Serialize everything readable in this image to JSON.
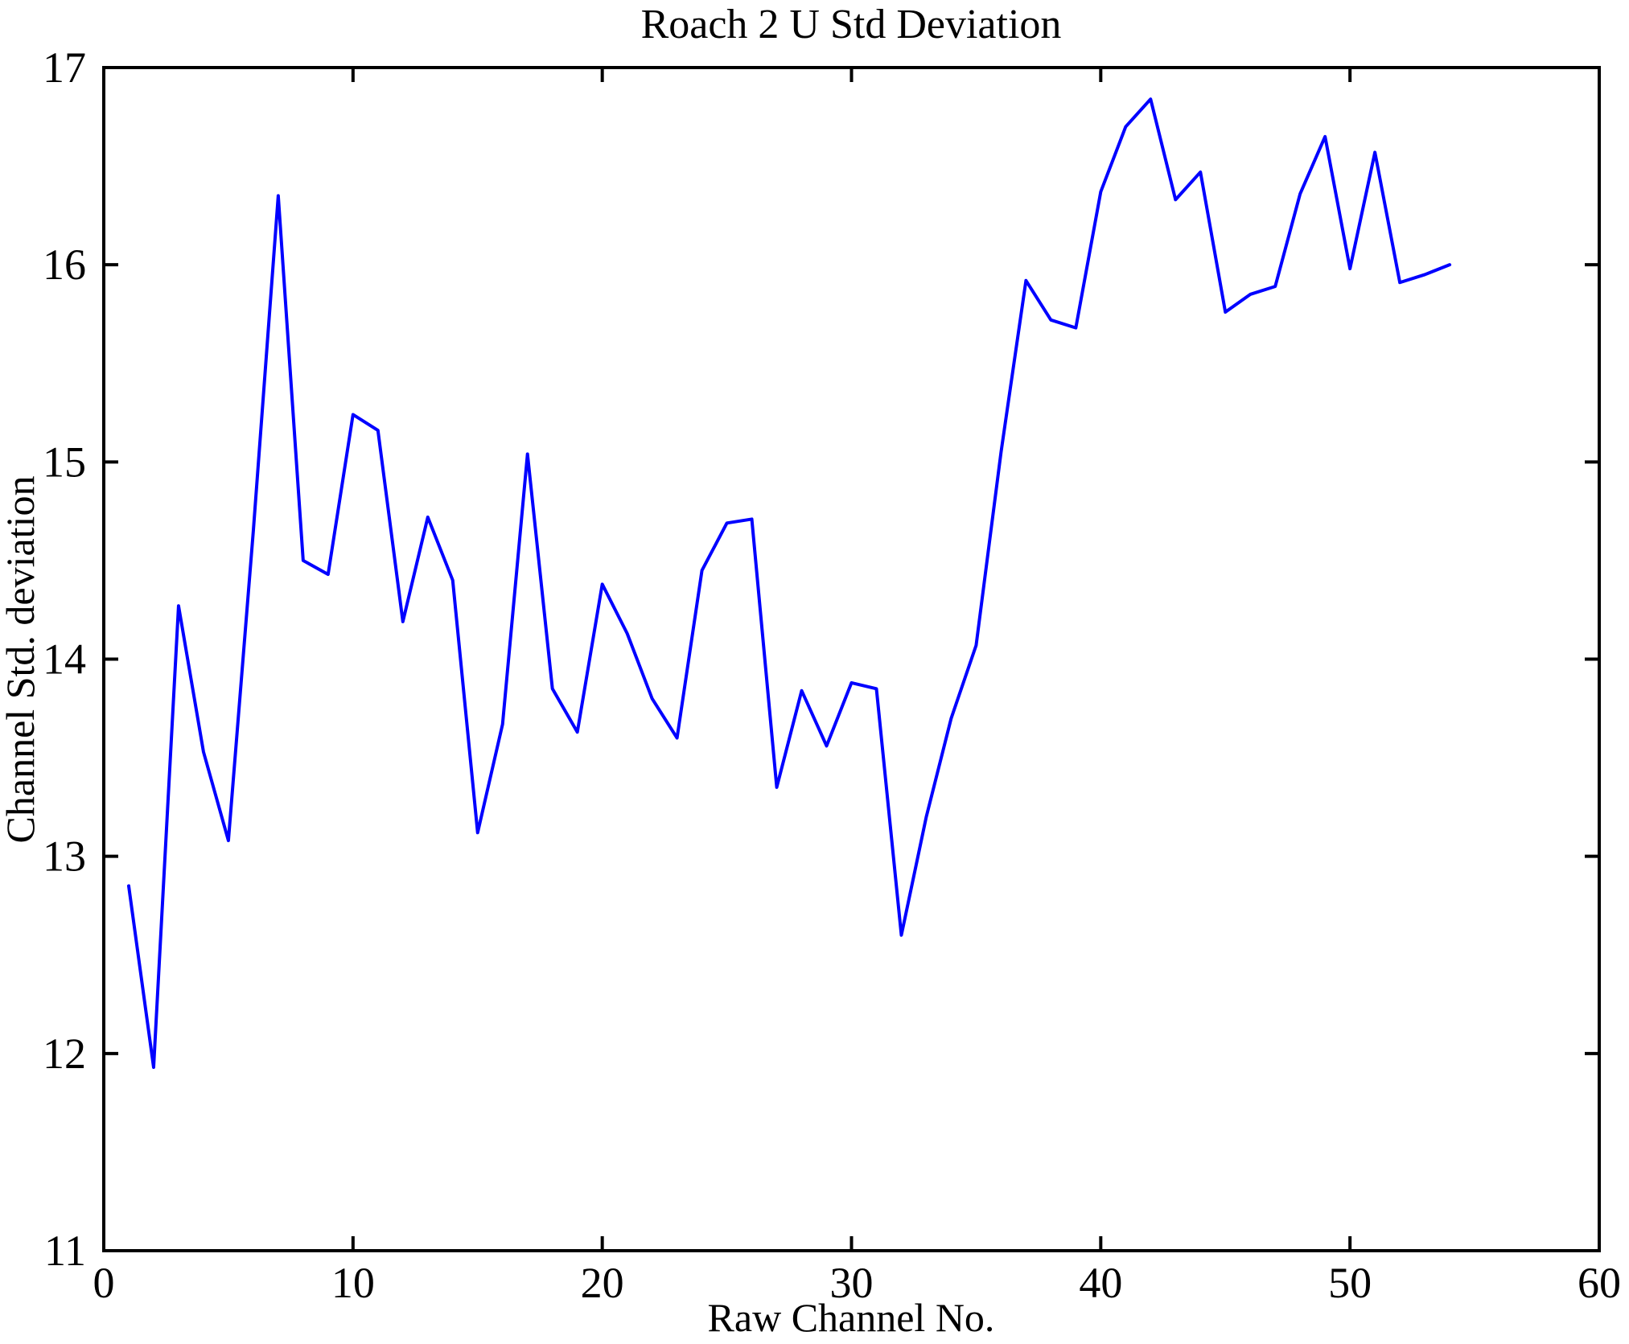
{
  "figure": {
    "background": "#ffffff",
    "text_color": "#000000",
    "axis_color": "#000000"
  },
  "chart_data": {
    "type": "line",
    "title": "Roach 2 U Std Deviation",
    "xlabel": "Raw Channel No.",
    "ylabel": "Channel Std. deviation",
    "xlim": [
      0,
      60
    ],
    "ylim": [
      11,
      17
    ],
    "xticks": [
      0,
      10,
      20,
      30,
      40,
      50,
      60
    ],
    "yticks": [
      11,
      12,
      13,
      14,
      15,
      16,
      17
    ],
    "grid": false,
    "legend": "none",
    "line_color": "#0000ff",
    "series_name": "Channel Std. deviation",
    "x": [
      1,
      2,
      3,
      4,
      5,
      6,
      7,
      8,
      9,
      10,
      11,
      12,
      13,
      14,
      15,
      16,
      17,
      18,
      19,
      20,
      21,
      22,
      23,
      24,
      25,
      26,
      27,
      28,
      29,
      30,
      31,
      32,
      33,
      34,
      35,
      36,
      37,
      38,
      39,
      40,
      41,
      42,
      43,
      44,
      45,
      46,
      47,
      48,
      49,
      50,
      51,
      52,
      53,
      54
    ],
    "values": [
      12.85,
      11.93,
      14.27,
      13.53,
      13.08,
      14.65,
      16.35,
      14.5,
      14.43,
      15.24,
      15.16,
      14.19,
      14.72,
      14.4,
      13.12,
      13.67,
      15.04,
      13.85,
      13.63,
      14.38,
      14.13,
      13.8,
      13.6,
      14.45,
      14.69,
      14.71,
      13.35,
      13.84,
      13.56,
      13.88,
      13.85,
      12.6,
      13.2,
      13.7,
      14.07,
      15.05,
      15.92,
      15.72,
      15.68,
      16.37,
      16.7,
      16.84,
      16.33,
      16.47,
      15.76,
      15.85,
      15.89,
      16.36,
      16.65,
      15.98,
      16.57,
      15.91,
      15.95,
      16.0
    ]
  }
}
